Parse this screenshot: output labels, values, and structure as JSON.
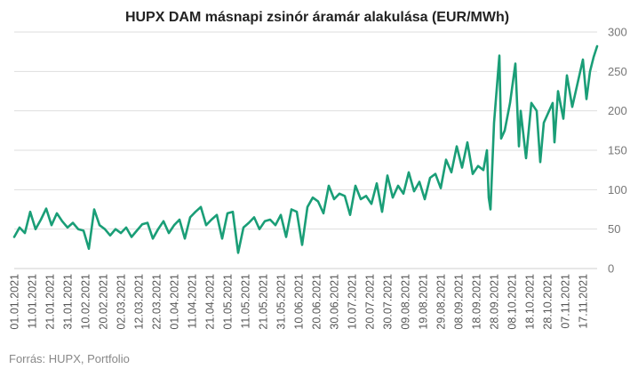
{
  "chart_data": {
    "type": "line",
    "title": "HUPX DAM másnapi zsinór áramár alakulása (EUR/MWh)",
    "source": "Forrás: HUPX, Portfolio",
    "series_color": "#1a9e77",
    "grid": true,
    "y_axis_side": "right",
    "ylim": [
      0,
      300
    ],
    "yticks": [
      "0",
      "50",
      "100",
      "150",
      "200",
      "250",
      "300"
    ],
    "x_start": "2021-01-01",
    "x_end": "2021-11-25",
    "xticks": [
      "01.01.2021",
      "11.01.2021",
      "21.01.2021",
      "31.01.2021",
      "10.02.2021",
      "20.02.2021",
      "02.03.2021",
      "12.03.2021",
      "22.03.2021",
      "01.04.2021",
      "11.04.2021",
      "21.04.2021",
      "01.05.2021",
      "11.05.2021",
      "21.05.2021",
      "31.05.2021",
      "10.06.2021",
      "20.06.2021",
      "30.06.2021",
      "10.07.2021",
      "20.07.2021",
      "30.07.2021",
      "09.08.2021",
      "19.08.2021",
      "29.08.2021",
      "08.09.2021",
      "18.09.2021",
      "28.09.2021",
      "08.10.2021",
      "18.10.2021",
      "28.10.2021",
      "07.11.2021",
      "17.11.2021"
    ],
    "x": [
      "2021-01-01",
      "2021-01-04",
      "2021-01-07",
      "2021-01-10",
      "2021-01-13",
      "2021-01-16",
      "2021-01-19",
      "2021-01-22",
      "2021-01-25",
      "2021-01-28",
      "2021-01-31",
      "2021-02-03",
      "2021-02-06",
      "2021-02-09",
      "2021-02-12",
      "2021-02-15",
      "2021-02-18",
      "2021-02-21",
      "2021-02-24",
      "2021-02-27",
      "2021-03-02",
      "2021-03-05",
      "2021-03-08",
      "2021-03-11",
      "2021-03-14",
      "2021-03-17",
      "2021-03-20",
      "2021-03-23",
      "2021-03-26",
      "2021-03-29",
      "2021-04-01",
      "2021-04-04",
      "2021-04-07",
      "2021-04-10",
      "2021-04-13",
      "2021-04-16",
      "2021-04-19",
      "2021-04-22",
      "2021-04-25",
      "2021-04-28",
      "2021-05-01",
      "2021-05-04",
      "2021-05-07",
      "2021-05-10",
      "2021-05-13",
      "2021-05-16",
      "2021-05-19",
      "2021-05-22",
      "2021-05-25",
      "2021-05-28",
      "2021-05-31",
      "2021-06-03",
      "2021-06-06",
      "2021-06-09",
      "2021-06-12",
      "2021-06-15",
      "2021-06-18",
      "2021-06-21",
      "2021-06-24",
      "2021-06-27",
      "2021-06-30",
      "2021-07-03",
      "2021-07-06",
      "2021-07-09",
      "2021-07-12",
      "2021-07-15",
      "2021-07-18",
      "2021-07-21",
      "2021-07-24",
      "2021-07-27",
      "2021-07-30",
      "2021-08-02",
      "2021-08-05",
      "2021-08-08",
      "2021-08-11",
      "2021-08-14",
      "2021-08-17",
      "2021-08-20",
      "2021-08-23",
      "2021-08-26",
      "2021-08-29",
      "2021-09-01",
      "2021-09-04",
      "2021-09-07",
      "2021-09-10",
      "2021-09-13",
      "2021-09-16",
      "2021-09-19",
      "2021-09-22",
      "2021-09-24",
      "2021-09-25",
      "2021-09-26",
      "2021-09-28",
      "2021-10-01",
      "2021-10-02",
      "2021-10-04",
      "2021-10-07",
      "2021-10-10",
      "2021-10-12",
      "2021-10-13",
      "2021-10-16",
      "2021-10-19",
      "2021-10-22",
      "2021-10-24",
      "2021-10-26",
      "2021-10-28",
      "2021-10-31",
      "2021-11-01",
      "2021-11-03",
      "2021-11-06",
      "2021-11-08",
      "2021-11-11",
      "2021-11-14",
      "2021-11-17",
      "2021-11-19",
      "2021-11-21",
      "2021-11-23",
      "2021-11-25"
    ],
    "series": [
      {
        "values": [
          40,
          52,
          45,
          72,
          50,
          62,
          76,
          55,
          70,
          60,
          52,
          58,
          50,
          48,
          25,
          75,
          55,
          50,
          42,
          50,
          45,
          52,
          40,
          48,
          56,
          58,
          38,
          50,
          60,
          45,
          55,
          62,
          38,
          65,
          72,
          78,
          55,
          62,
          68,
          38,
          70,
          72,
          20,
          52,
          58,
          65,
          50,
          60,
          62,
          55,
          68,
          40,
          75,
          72,
          30,
          78,
          90,
          85,
          70,
          105,
          88,
          95,
          92,
          68,
          105,
          88,
          92,
          82,
          108,
          72,
          118,
          90,
          105,
          95,
          122,
          98,
          110,
          88,
          115,
          120,
          102,
          138,
          122,
          155,
          128,
          160,
          120,
          130,
          125,
          150,
          90,
          75,
          185,
          270,
          165,
          175,
          210,
          260,
          155,
          200,
          140,
          210,
          200,
          135,
          185,
          195,
          210,
          160,
          225,
          190,
          245,
          205,
          235,
          265,
          215,
          250,
          268,
          282
        ]
      }
    ]
  }
}
